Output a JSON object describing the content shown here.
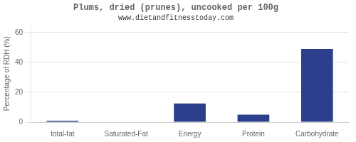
{
  "chart_data": {
    "type": "bar",
    "title": "Plums, dried (prunes), uncooked per 100g",
    "subtitle": "www.dietandfitnesstoday.com",
    "categories": [
      "total-fat",
      "Saturated-Fat",
      "Energy",
      "Protein",
      "Carbohydrate"
    ],
    "values": [
      1.0,
      0.0,
      12.5,
      5.0,
      49.0
    ],
    "color": "#2b3f8c",
    "ylabel": "Percentage of RDH (%)",
    "ylim": [
      0,
      65
    ],
    "yticks": [
      0,
      20,
      40,
      60
    ],
    "grid": true
  }
}
